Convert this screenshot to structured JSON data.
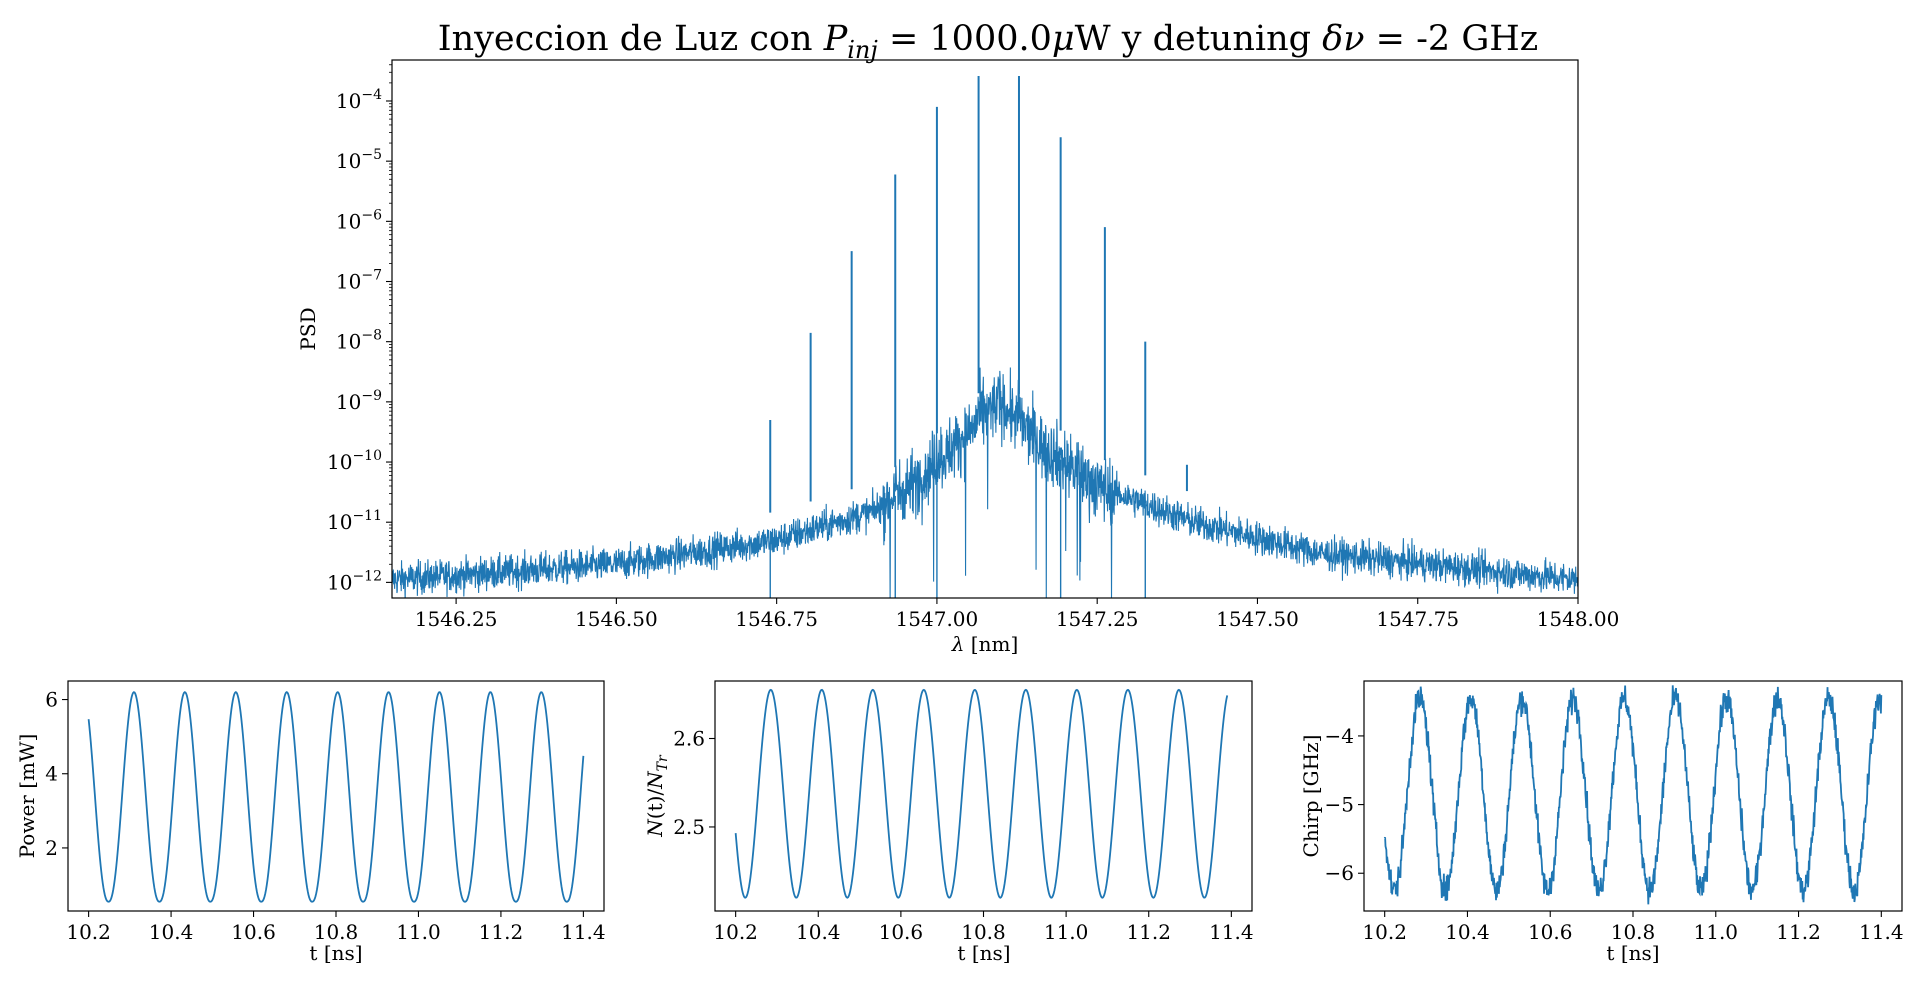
{
  "figure": {
    "title_parts": {
      "t1": "Inyeccion de Luz con ",
      "P": "P",
      "inj": "inj",
      "t2": " =  1000.0",
      "mu": "μ",
      "t3": "W y detuning ",
      "dn": "δν",
      "t4": " = -2 GHz"
    }
  },
  "chart_data": [
    {
      "type": "line",
      "id": "spectrum",
      "xlabel_parts": {
        "lambda": "λ",
        "rest": " [nm]"
      },
      "ylabel": "PSD",
      "xlim": [
        1546.15,
        1548.0
      ],
      "ylim": [
        5.5e-13,
        0.00048
      ],
      "yscale": "log",
      "xticks": [
        "1546.25",
        "1546.50",
        "1546.75",
        "1547.00",
        "1547.25",
        "1547.50",
        "1547.75",
        "1548.00"
      ],
      "xtick_values": [
        1546.25,
        1546.5,
        1546.75,
        1547.0,
        1547.25,
        1547.5,
        1547.75,
        1548.0
      ],
      "ytick_exponents": [
        "-12",
        "-11",
        "-10",
        "-9",
        "-8",
        "-7",
        "-6",
        "-5",
        "-4"
      ],
      "center_nm": 1547.097,
      "line_spacing_nm": 0.064,
      "color": "#1f77b4",
      "peaks": [
        {
          "x": 1546.74,
          "y": 5e-10
        },
        {
          "x": 1546.803,
          "y": 1.4e-08
        },
        {
          "x": 1546.867,
          "y": 3.2e-07
        },
        {
          "x": 1546.935,
          "y": 6e-06
        },
        {
          "x": 1547.0,
          "y": 8e-05
        },
        {
          "x": 1547.065,
          "y": 0.00026
        },
        {
          "x": 1547.128,
          "y": 0.00026
        },
        {
          "x": 1547.193,
          "y": 2.5e-05
        },
        {
          "x": 1547.262,
          "y": 8e-07
        },
        {
          "x": 1547.325,
          "y": 1e-08
        },
        {
          "x": 1547.39,
          "y": 9e-11
        }
      ],
      "noise_floor": [
        {
          "x": 1546.15,
          "y": 1.1e-12
        },
        {
          "x": 1546.5,
          "y": 2e-12
        },
        {
          "x": 1546.75,
          "y": 5e-12
        },
        {
          "x": 1546.9,
          "y": 1.5e-11
        },
        {
          "x": 1546.97,
          "y": 5e-11
        },
        {
          "x": 1547.03,
          "y": 2e-10
        },
        {
          "x": 1547.097,
          "y": 1e-09
        },
        {
          "x": 1547.16,
          "y": 2e-10
        },
        {
          "x": 1547.25,
          "y": 4e-11
        },
        {
          "x": 1547.4,
          "y": 1e-11
        },
        {
          "x": 1547.6,
          "y": 3e-12
        },
        {
          "x": 1548.0,
          "y": 1.1e-12
        }
      ]
    },
    {
      "type": "line",
      "id": "power",
      "xlabel": "t [ns]",
      "ylabel": "Power [mW]",
      "xlim": [
        10.15,
        11.45
      ],
      "ylim": [
        0.3,
        6.5
      ],
      "xticks": [
        "10.2",
        "10.4",
        "10.6",
        "10.8",
        "11.0",
        "11.2",
        "11.4"
      ],
      "xtick_values": [
        10.2,
        10.4,
        10.6,
        10.8,
        11.0,
        11.2,
        11.4
      ],
      "yticks": [
        "2",
        "4",
        "6"
      ],
      "ytick_values": [
        2,
        4,
        6
      ],
      "color": "#1f77b4",
      "signal": {
        "t_start": 10.2,
        "t_end": 11.4,
        "period_ns": 0.1235,
        "first_peak_ns": 10.31,
        "min": 0.55,
        "max": 6.2
      }
    },
    {
      "type": "line",
      "id": "carriers",
      "xlabel": "t [ns]",
      "ylabel_parts": {
        "N": "N",
        "t": "(t)/",
        "N2": "N",
        "sub": "Tr"
      },
      "xlim": [
        10.15,
        11.45
      ],
      "ylim": [
        2.405,
        2.665
      ],
      "xticks": [
        "10.2",
        "10.4",
        "10.6",
        "10.8",
        "11.0",
        "11.2",
        "11.4"
      ],
      "xtick_values": [
        10.2,
        10.4,
        10.6,
        10.8,
        11.0,
        11.2,
        11.4
      ],
      "yticks": [
        "2.5",
        "2.6"
      ],
      "ytick_values": [
        2.5,
        2.6
      ],
      "color": "#1f77b4",
      "signal": {
        "t_start": 10.2,
        "t_end": 11.39,
        "period_ns": 0.1235,
        "first_peak_ns": 10.285,
        "min": 2.42,
        "max": 2.655
      }
    },
    {
      "type": "line",
      "id": "chirp",
      "xlabel": "t [ns]",
      "ylabel": "Chirp [GHz]",
      "xlim": [
        10.15,
        11.45
      ],
      "ylim": [
        -6.55,
        -3.2
      ],
      "xticks": [
        "10.2",
        "10.4",
        "10.6",
        "10.8",
        "11.0",
        "11.2",
        "11.4"
      ],
      "xtick_values": [
        10.2,
        10.4,
        10.6,
        10.8,
        11.0,
        11.2,
        11.4
      ],
      "yticks": [
        "−6",
        "−5",
        "−4"
      ],
      "ytick_values": [
        -6,
        -5,
        -4
      ],
      "color": "#1f77b4",
      "signal": {
        "t_start": 10.2,
        "t_end": 11.4,
        "period_ns": 0.1235,
        "first_peak_ns": 10.285,
        "min": -6.25,
        "max": -3.45
      }
    }
  ]
}
